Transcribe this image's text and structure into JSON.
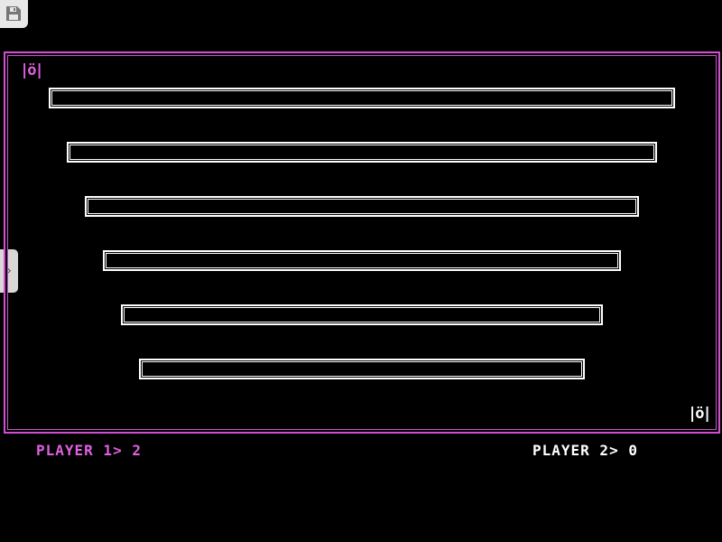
{
  "toolbar": {
    "save_icon": "floppy-disk-icon",
    "panel_toggle_icon": "chevron-right-icon"
  },
  "game": {
    "player1": {
      "sprite": "|ö|",
      "color": "#e060e0",
      "score_label": "PLAYER 1> 2"
    },
    "player2": {
      "sprite": "|ö|",
      "color": "#ffffff",
      "score_label": "PLAYER 2> 0"
    },
    "border_color": "#d050d0",
    "barrier_count": 6
  }
}
